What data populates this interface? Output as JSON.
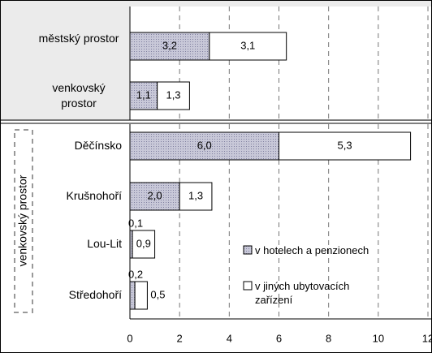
{
  "chart_data": {
    "type": "stacked_bar_horizontal",
    "categories": [
      "městský prostor",
      "venkovský prostor",
      "Děčínsko",
      "Krušnohoří",
      "Lou-Lit",
      "Středohoří"
    ],
    "series": [
      {
        "name": "v hotelech a penzionech",
        "color": "#b4b4c8",
        "values": [
          3.2,
          1.1,
          6.0,
          2.0,
          0.1,
          0.2
        ],
        "value_labels": [
          "3,2",
          "1,1",
          "6,0",
          "2,0",
          "0,1",
          "0,2"
        ]
      },
      {
        "name": "v jiných ubytovacích zařízení",
        "color": "#ffffff",
        "values": [
          3.1,
          1.3,
          5.3,
          1.3,
          0.9,
          0.5
        ],
        "value_labels": [
          "3,1",
          "1,3",
          "5,3",
          "1,3",
          "0,9",
          "0,5"
        ]
      }
    ],
    "group_label": "venkovský prostor",
    "xlim": [
      0,
      12
    ],
    "xticks": [
      0,
      2,
      4,
      6,
      8,
      10,
      12
    ],
    "grid": true
  }
}
